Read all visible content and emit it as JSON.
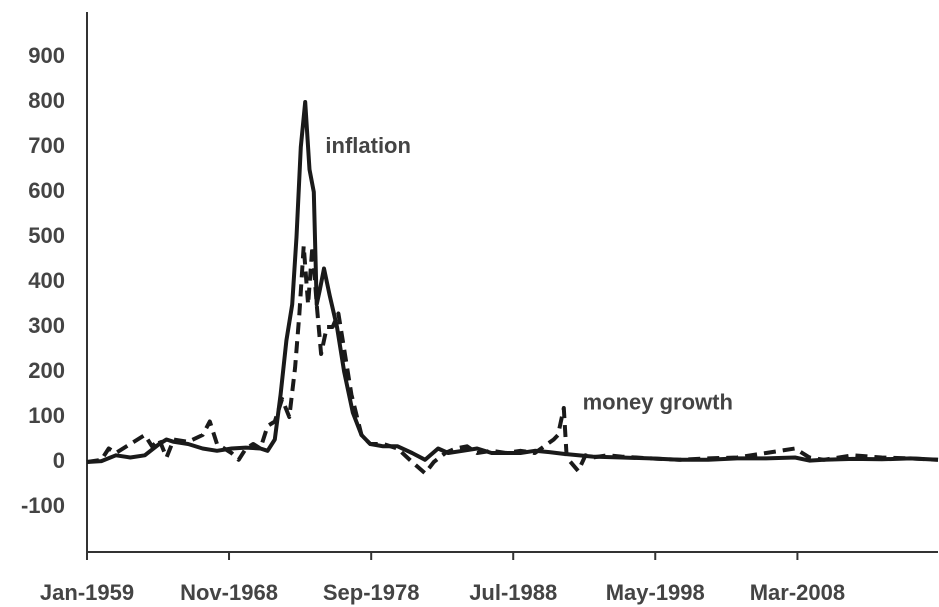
{
  "chart_data": {
    "type": "line",
    "annotations": [
      {
        "text": "inflation",
        "x": 1975.5,
        "y": 700
      },
      {
        "text": "money growth",
        "x": 1993.3,
        "y": 130
      }
    ],
    "xlim": [
      1959,
      2017.9
    ],
    "xticks": [
      {
        "value": 1959,
        "label": "Jan-1959"
      },
      {
        "value": 1968.83,
        "label": "Nov-1968"
      },
      {
        "value": 1978.67,
        "label": "Sep-1978"
      },
      {
        "value": 1988.5,
        "label": "Jul-1988"
      },
      {
        "value": 1998.33,
        "label": "May-1998"
      },
      {
        "value": 2008.17,
        "label": "Mar-2008"
      }
    ],
    "ylim": [
      -200,
      1000
    ],
    "yticks": [
      -100,
      0,
      100,
      200,
      300,
      400,
      500,
      600,
      700,
      800,
      900
    ],
    "grid": false,
    "series": [
      {
        "name": "inflation",
        "color": "#1a1a1a",
        "line_style": "solid",
        "x": [
          1959,
          1960,
          1961,
          1962,
          1963,
          1964,
          1964.5,
          1965,
          1966,
          1967,
          1968,
          1969,
          1970,
          1971,
          1971.5,
          1972,
          1972.4,
          1972.8,
          1973.2,
          1973.5,
          1973.8,
          1974.1,
          1974.4,
          1974.7,
          1974.9,
          1975.1,
          1975.4,
          1975.8,
          1976.3,
          1976.8,
          1977.4,
          1978,
          1978.6,
          1979.5,
          1980.5,
          1981.5,
          1982.4,
          1983.3,
          1984,
          1985,
          1986,
          1987,
          1988,
          1989,
          1990,
          1991,
          1992,
          1994,
          1996,
          1998,
          2000,
          2002,
          2004,
          2006,
          2008,
          2009,
          2010,
          2012,
          2014,
          2016,
          2017.9
        ],
        "values": [
          0,
          2,
          15,
          10,
          15,
          40,
          50,
          45,
          40,
          30,
          25,
          30,
          32,
          30,
          25,
          50,
          150,
          270,
          350,
          500,
          700,
          800,
          650,
          600,
          350,
          380,
          430,
          370,
          300,
          200,
          110,
          60,
          40,
          35,
          35,
          20,
          5,
          30,
          20,
          25,
          30,
          20,
          20,
          20,
          25,
          22,
          18,
          12,
          10,
          8,
          5,
          5,
          8,
          8,
          10,
          3,
          5,
          7,
          6,
          8,
          5
        ]
      },
      {
        "name": "money growth",
        "color": "#1a1a1a",
        "line_style": "dashed",
        "x": [
          1959,
          1960,
          1960.5,
          1961,
          1962,
          1963,
          1963.5,
          1964,
          1964.5,
          1965,
          1966,
          1967,
          1967.5,
          1968,
          1969,
          1969.5,
          1970,
          1970.5,
          1971,
          1971.5,
          1972,
          1972.5,
          1973,
          1973.4,
          1973.7,
          1974,
          1974.3,
          1974.6,
          1974.9,
          1975.2,
          1975.6,
          1976,
          1976.4,
          1976.8,
          1977.3,
          1978,
          1978.6,
          1979.5,
          1980.5,
          1981.5,
          1982.4,
          1983,
          1983.8,
          1984.5,
          1985.3,
          1986,
          1987,
          1988,
          1989,
          1990,
          1991.3,
          1991.6,
          1992,
          1992.2,
          1993,
          1993.5,
          1994,
          1995,
          1996,
          1998,
          2000,
          2002,
          2004,
          2006,
          2008,
          2009,
          2010,
          2012,
          2014,
          2016,
          2017.9
        ],
        "values": [
          0,
          5,
          30,
          20,
          40,
          60,
          35,
          50,
          10,
          50,
          45,
          60,
          90,
          40,
          20,
          5,
          30,
          40,
          30,
          80,
          90,
          140,
          100,
          210,
          330,
          480,
          350,
          480,
          350,
          240,
          300,
          300,
          330,
          250,
          150,
          60,
          40,
          40,
          30,
          0,
          -25,
          0,
          20,
          30,
          35,
          20,
          25,
          20,
          25,
          20,
          50,
          60,
          120,
          10,
          -20,
          15,
          10,
          15,
          12,
          8,
          5,
          8,
          10,
          20,
          30,
          10,
          5,
          15,
          10,
          8,
          5
        ]
      }
    ]
  }
}
